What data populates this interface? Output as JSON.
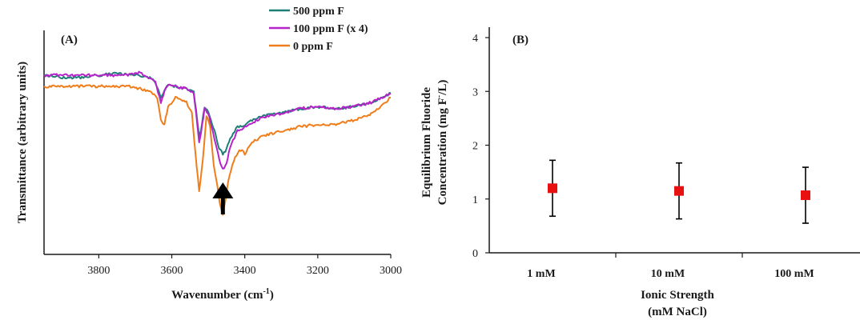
{
  "chart_data": [
    {
      "panel_label": "(A)",
      "type": "line",
      "xlabel": "Wavenumber (cm",
      "xlabel_sup": "-1",
      "xlabel_tail": ")",
      "ylabel": "Transmittance (arbitrary units)",
      "xlim": [
        3950,
        3000
      ],
      "x_ticks": [
        3800,
        3600,
        3400,
        3200,
        3000
      ],
      "x_tick_labels": [
        "3800",
        "3600",
        "3400",
        "3200",
        "3000"
      ],
      "y_ticks": false,
      "grid": false,
      "legend_placement": "top-center",
      "arrow_at_x": 3460,
      "series": [
        {
          "name": "500 ppm F",
          "color": "#1f7f77",
          "x": [
            3950,
            3900,
            3850,
            3800,
            3760,
            3720,
            3690,
            3660,
            3645,
            3630,
            3620,
            3610,
            3590,
            3560,
            3540,
            3530,
            3525,
            3520,
            3510,
            3500,
            3490,
            3480,
            3470,
            3460,
            3450,
            3440,
            3420,
            3400,
            3380,
            3350,
            3300,
            3250,
            3200,
            3150,
            3100,
            3050,
            3000
          ],
          "y": [
            0.8,
            0.79,
            0.79,
            0.8,
            0.81,
            0.8,
            0.8,
            0.79,
            0.77,
            0.7,
            0.73,
            0.76,
            0.75,
            0.74,
            0.73,
            0.6,
            0.52,
            0.55,
            0.66,
            0.64,
            0.58,
            0.54,
            0.47,
            0.45,
            0.47,
            0.52,
            0.57,
            0.58,
            0.6,
            0.62,
            0.63,
            0.65,
            0.66,
            0.65,
            0.66,
            0.68,
            0.72
          ]
        },
        {
          "name": "100 ppm F (x 4)",
          "color": "#b424c8",
          "x": [
            3950,
            3900,
            3850,
            3800,
            3760,
            3720,
            3690,
            3660,
            3645,
            3630,
            3620,
            3610,
            3590,
            3560,
            3540,
            3530,
            3525,
            3520,
            3510,
            3500,
            3490,
            3480,
            3470,
            3460,
            3450,
            3440,
            3420,
            3400,
            3380,
            3350,
            3300,
            3250,
            3200,
            3150,
            3100,
            3050,
            3000
          ],
          "y": [
            0.8,
            0.8,
            0.8,
            0.8,
            0.8,
            0.8,
            0.81,
            0.79,
            0.77,
            0.68,
            0.73,
            0.76,
            0.75,
            0.74,
            0.72,
            0.58,
            0.5,
            0.54,
            0.65,
            0.63,
            0.56,
            0.5,
            0.42,
            0.38,
            0.41,
            0.48,
            0.55,
            0.57,
            0.59,
            0.61,
            0.63,
            0.65,
            0.66,
            0.65,
            0.66,
            0.68,
            0.72
          ]
        },
        {
          "name": "0 ppm F",
          "color": "#f07d1a",
          "x": [
            3950,
            3900,
            3850,
            3800,
            3760,
            3720,
            3690,
            3660,
            3640,
            3630,
            3620,
            3610,
            3590,
            3570,
            3560,
            3545,
            3535,
            3525,
            3515,
            3505,
            3495,
            3485,
            3475,
            3465,
            3460,
            3455,
            3445,
            3430,
            3415,
            3400,
            3380,
            3350,
            3300,
            3250,
            3200,
            3150,
            3100,
            3050,
            3000
          ],
          "y": [
            0.75,
            0.75,
            0.75,
            0.75,
            0.75,
            0.75,
            0.74,
            0.73,
            0.7,
            0.6,
            0.58,
            0.66,
            0.7,
            0.69,
            0.68,
            0.63,
            0.45,
            0.28,
            0.42,
            0.62,
            0.57,
            0.4,
            0.3,
            0.2,
            0.18,
            0.22,
            0.33,
            0.42,
            0.47,
            0.45,
            0.5,
            0.53,
            0.55,
            0.57,
            0.58,
            0.58,
            0.6,
            0.63,
            0.7
          ]
        }
      ]
    },
    {
      "panel_label": "(B)",
      "type": "scatter",
      "xlabel": "Ionic Strength",
      "xlabel_line2": "(mM NaCl)",
      "ylabel_line1": "Equilibrium Fluoride",
      "ylabel_line2_pre": "Concentration (mg F",
      "ylabel_line2_sup": "-",
      "ylabel_line2_post": "/L)",
      "categories": [
        "1 mM",
        "10 mM",
        "100 mM"
      ],
      "ylim": [
        0,
        4
      ],
      "y_ticks": [
        0,
        1,
        2,
        3,
        4
      ],
      "y_tick_labels": [
        "0",
        "1",
        "2",
        "3",
        "4"
      ],
      "grid": false,
      "legend": "none",
      "marker_color": "#e81010",
      "series": [
        {
          "values": [
            1.2,
            1.15,
            1.07
          ],
          "error": [
            0.52,
            0.52,
            0.52
          ]
        }
      ]
    }
  ]
}
